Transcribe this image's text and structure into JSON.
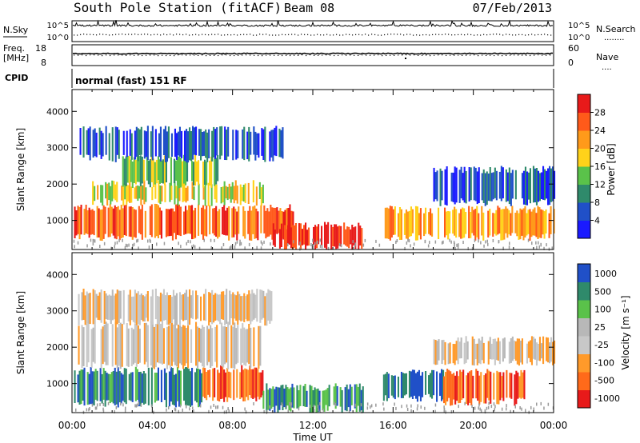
{
  "header": {
    "station": "South Pole Station (fitACF)",
    "beam": "Beam 08",
    "date": "07/Feb/2013"
  },
  "aux": {
    "nsky_label": "N.Sky",
    "nsearch_label": "N.Search",
    "nsearch_dots": "........",
    "freq_label_1": "Freq.",
    "freq_label_2": "[MHz]",
    "freq_ticks": [
      "18",
      "8"
    ],
    "nave_label": "Nave",
    "nave_dots": "....",
    "nave_ticks": [
      "60",
      "0"
    ],
    "cpid_label": "CPID",
    "cpid_text": "normal (fast) 151 RF",
    "sky_ticks_left": [
      "10^5",
      "10^0"
    ],
    "sky_ticks_right": [
      "10^5",
      "10^0"
    ]
  },
  "colors": {
    "power": [
      "#1a1aff",
      "#2050c8",
      "#2f8a6b",
      "#5ac24a",
      "#ffd21a",
      "#ff9a1a",
      "#ff5a1a",
      "#e81a1a"
    ],
    "velocity": [
      "#e81a1a",
      "#ff6a1a",
      "#ff9a2a",
      "#c8c8c8",
      "#b8b8b8",
      "#5ac24a",
      "#2f8a6b",
      "#2050c8"
    ]
  },
  "chart_data": [
    {
      "type": "heatmap",
      "panel": "power",
      "ylabel": "Slant Range [km]",
      "ylim": [
        200,
        4600
      ],
      "yticks": [
        1000,
        2000,
        3000,
        4000
      ],
      "xlim": [
        0,
        24
      ],
      "colorbar": {
        "label": "Power [dB]",
        "range": [
          0,
          32
        ],
        "ticks": [
          "4",
          "8",
          "12",
          "16",
          "20",
          "24",
          "28"
        ]
      },
      "bands": [
        {
          "t0": 0.1,
          "t1": 11.0,
          "r0": 550,
          "r1": 1350,
          "level": 6
        },
        {
          "t0": 10.0,
          "t1": 14.5,
          "r0": 250,
          "r1": 850,
          "level": 7
        },
        {
          "t0": 15.5,
          "t1": 24.0,
          "r0": 550,
          "r1": 1300,
          "level": 5
        },
        {
          "t0": 1.0,
          "t1": 9.5,
          "r0": 1500,
          "r1": 2000,
          "level": 4
        },
        {
          "t0": 2.5,
          "t1": 7.5,
          "r0": 2000,
          "r1": 2700,
          "level": 3
        },
        {
          "t0": 0.3,
          "t1": 10.5,
          "r0": 2700,
          "r1": 3500,
          "level": 1
        },
        {
          "t0": 18.0,
          "t1": 24.0,
          "r0": 1500,
          "r1": 2400,
          "level": 1
        }
      ]
    },
    {
      "type": "heatmap",
      "panel": "velocity",
      "ylabel": "Slant Range [km]",
      "xlabel": "Time UT",
      "ylim": [
        200,
        4600
      ],
      "yticks": [
        1000,
        2000,
        3000,
        4000
      ],
      "xlim": [
        0,
        24
      ],
      "xticks": [
        "00:00",
        "04:00",
        "08:00",
        "12:00",
        "16:00",
        "20:00",
        "00:00"
      ],
      "colorbar": {
        "label": "Velocity [m s⁻¹]",
        "ticks": [
          "1000",
          "500",
          "100",
          "25",
          "-25",
          "-100",
          "-500",
          "-1000"
        ]
      },
      "bands": [
        {
          "t0": 0.1,
          "t1": 6.5,
          "r0": 450,
          "r1": 1350,
          "level": 6
        },
        {
          "t0": 6.5,
          "t1": 9.5,
          "r0": 600,
          "r1": 1400,
          "level": 1
        },
        {
          "t0": 9.5,
          "t1": 14.5,
          "r0": 300,
          "r1": 900,
          "level": 6
        },
        {
          "t0": 15.5,
          "t1": 18.5,
          "r0": 600,
          "r1": 1300,
          "level": 7
        },
        {
          "t0": 18.5,
          "t1": 22.5,
          "r0": 500,
          "r1": 1300,
          "level": 1
        },
        {
          "t0": 0.3,
          "t1": 9.5,
          "r0": 1500,
          "r1": 2600,
          "level": 3
        },
        {
          "t0": 18.0,
          "t1": 24.0,
          "r0": 1600,
          "r1": 2200,
          "level": 3
        },
        {
          "t0": 0.3,
          "t1": 10.0,
          "r0": 2700,
          "r1": 3500,
          "level": 3
        }
      ]
    }
  ]
}
